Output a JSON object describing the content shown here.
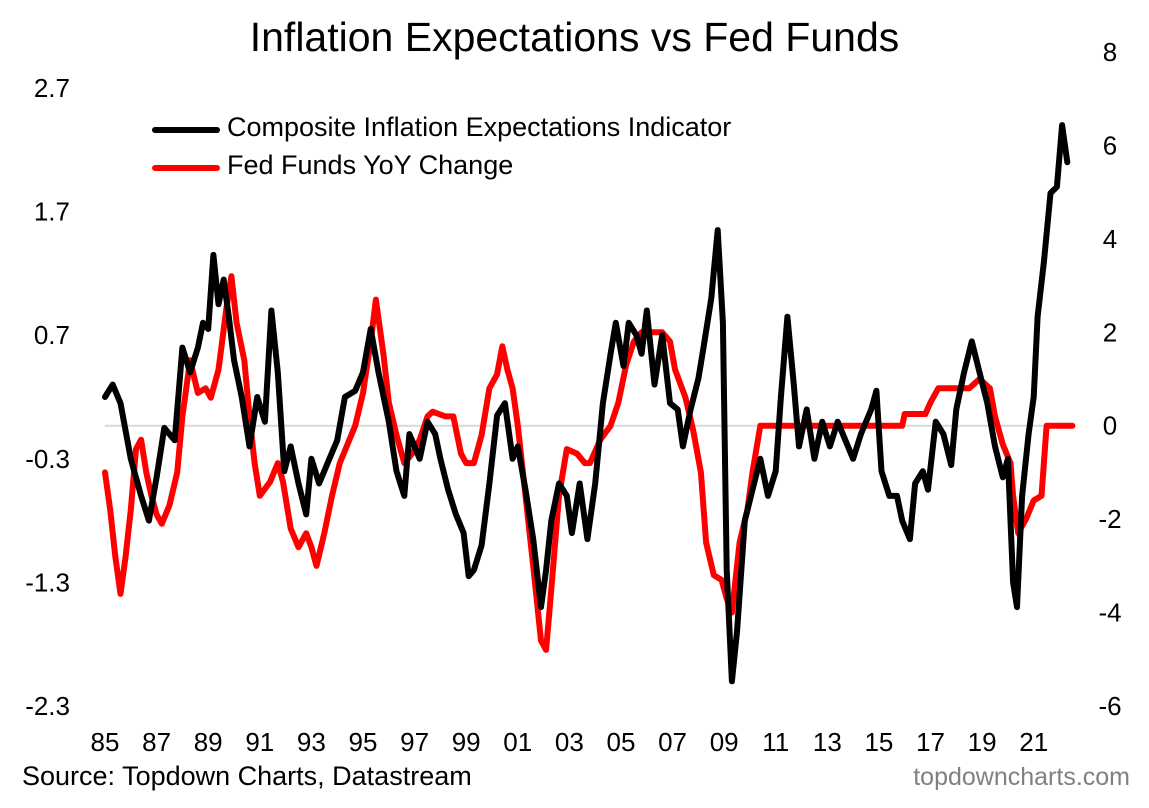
{
  "chart_data": {
    "type": "line",
    "title": "Inflation Expectations vs Fed Funds",
    "source": "Source: Topdown Charts, Datastream",
    "credit": "topdowncharts.com",
    "legend_position": "top-left",
    "grid": false,
    "x_axis": {
      "range": [
        1985,
        2022.6
      ],
      "tick_values": [
        1985,
        1987,
        1989,
        1991,
        1993,
        1995,
        1997,
        1999,
        2001,
        2003,
        2005,
        2007,
        2009,
        2011,
        2013,
        2015,
        2017,
        2019,
        2021
      ],
      "tick_labels": [
        "85",
        "87",
        "89",
        "91",
        "93",
        "95",
        "97",
        "99",
        "01",
        "03",
        "05",
        "07",
        "09",
        "11",
        "13",
        "15",
        "17",
        "19",
        "21"
      ]
    },
    "left_axis": {
      "range": [
        -2.3,
        2.7
      ],
      "tick_values": [
        2.7,
        1.7,
        0.7,
        -0.3,
        -1.3,
        -2.3
      ],
      "tick_labels": [
        "2.7",
        "1.7",
        "0.7",
        "-0.3",
        "-1.3",
        "-2.3"
      ]
    },
    "right_axis": {
      "range": [
        -6,
        8
      ],
      "tick_values": [
        8,
        6,
        4,
        2,
        0,
        -2,
        -4,
        -6
      ],
      "tick_labels": [
        "8",
        "6",
        "4",
        "2",
        "0",
        "-2",
        "-4",
        "-6"
      ]
    },
    "series": [
      {
        "name": "Composite Inflation Expectations Indicator",
        "axis": "left",
        "color": "#000000",
        "points": [
          [
            1985.0,
            0.2
          ],
          [
            1985.3,
            0.3
          ],
          [
            1985.6,
            0.15
          ],
          [
            1986.0,
            -0.3
          ],
          [
            1986.4,
            -0.6
          ],
          [
            1986.7,
            -0.8
          ],
          [
            1987.0,
            -0.45
          ],
          [
            1987.3,
            -0.05
          ],
          [
            1987.7,
            -0.15
          ],
          [
            1988.0,
            0.6
          ],
          [
            1988.3,
            0.4
          ],
          [
            1988.6,
            0.6
          ],
          [
            1988.8,
            0.8
          ],
          [
            1989.0,
            0.75
          ],
          [
            1989.2,
            1.35
          ],
          [
            1989.4,
            0.95
          ],
          [
            1989.6,
            1.15
          ],
          [
            1989.8,
            0.85
          ],
          [
            1990.0,
            0.5
          ],
          [
            1990.3,
            0.2
          ],
          [
            1990.6,
            -0.2
          ],
          [
            1990.9,
            0.2
          ],
          [
            1991.2,
            0.0
          ],
          [
            1991.45,
            0.9
          ],
          [
            1991.7,
            0.4
          ],
          [
            1991.95,
            -0.4
          ],
          [
            1992.2,
            -0.2
          ],
          [
            1992.5,
            -0.5
          ],
          [
            1992.8,
            -0.75
          ],
          [
            1993.0,
            -0.3
          ],
          [
            1993.3,
            -0.5
          ],
          [
            1993.7,
            -0.3
          ],
          [
            1994.0,
            -0.15
          ],
          [
            1994.3,
            0.2
          ],
          [
            1994.7,
            0.25
          ],
          [
            1995.0,
            0.4
          ],
          [
            1995.3,
            0.75
          ],
          [
            1995.6,
            0.4
          ],
          [
            1996.0,
            0.0
          ],
          [
            1996.3,
            -0.4
          ],
          [
            1996.6,
            -0.6
          ],
          [
            1996.8,
            -0.1
          ],
          [
            1997.2,
            -0.3
          ],
          [
            1997.5,
            0.0
          ],
          [
            1997.8,
            -0.1
          ],
          [
            1998.0,
            -0.3
          ],
          [
            1998.3,
            -0.55
          ],
          [
            1998.6,
            -0.75
          ],
          [
            1998.9,
            -0.9
          ],
          [
            1999.1,
            -1.25
          ],
          [
            1999.3,
            -1.2
          ],
          [
            1999.6,
            -1.0
          ],
          [
            1999.9,
            -0.5
          ],
          [
            2000.2,
            0.05
          ],
          [
            2000.5,
            0.15
          ],
          [
            2000.8,
            -0.3
          ],
          [
            2001.0,
            -0.2
          ],
          [
            2001.3,
            -0.55
          ],
          [
            2001.6,
            -0.95
          ],
          [
            2001.9,
            -1.5
          ],
          [
            2002.1,
            -1.2
          ],
          [
            2002.3,
            -0.8
          ],
          [
            2002.6,
            -0.5
          ],
          [
            2002.9,
            -0.6
          ],
          [
            2003.1,
            -0.9
          ],
          [
            2003.4,
            -0.5
          ],
          [
            2003.7,
            -0.95
          ],
          [
            2004.0,
            -0.5
          ],
          [
            2004.3,
            0.15
          ],
          [
            2004.6,
            0.55
          ],
          [
            2004.8,
            0.8
          ],
          [
            2005.1,
            0.45
          ],
          [
            2005.3,
            0.8
          ],
          [
            2005.6,
            0.7
          ],
          [
            2005.8,
            0.55
          ],
          [
            2006.0,
            0.9
          ],
          [
            2006.3,
            0.3
          ],
          [
            2006.6,
            0.7
          ],
          [
            2006.9,
            0.15
          ],
          [
            2007.2,
            0.1
          ],
          [
            2007.4,
            -0.2
          ],
          [
            2007.7,
            0.1
          ],
          [
            2008.0,
            0.35
          ],
          [
            2008.2,
            0.6
          ],
          [
            2008.5,
            1.0
          ],
          [
            2008.75,
            1.55
          ],
          [
            2008.95,
            0.8
          ],
          [
            2009.1,
            -1.2
          ],
          [
            2009.3,
            -2.1
          ],
          [
            2009.5,
            -1.7
          ],
          [
            2009.8,
            -0.8
          ],
          [
            2010.1,
            -0.55
          ],
          [
            2010.4,
            -0.3
          ],
          [
            2010.7,
            -0.6
          ],
          [
            2011.0,
            -0.4
          ],
          [
            2011.2,
            0.2
          ],
          [
            2011.45,
            0.85
          ],
          [
            2011.7,
            0.3
          ],
          [
            2011.9,
            -0.2
          ],
          [
            2012.2,
            0.1
          ],
          [
            2012.5,
            -0.3
          ],
          [
            2012.8,
            0.0
          ],
          [
            2013.1,
            -0.2
          ],
          [
            2013.4,
            0.0
          ],
          [
            2013.7,
            -0.15
          ],
          [
            2014.0,
            -0.3
          ],
          [
            2014.3,
            -0.1
          ],
          [
            2014.7,
            0.1
          ],
          [
            2014.9,
            0.25
          ],
          [
            2015.1,
            -0.4
          ],
          [
            2015.4,
            -0.6
          ],
          [
            2015.7,
            -0.6
          ],
          [
            2015.9,
            -0.8
          ],
          [
            2016.2,
            -0.95
          ],
          [
            2016.4,
            -0.5
          ],
          [
            2016.7,
            -0.4
          ],
          [
            2016.9,
            -0.55
          ],
          [
            2017.2,
            0.0
          ],
          [
            2017.5,
            -0.1
          ],
          [
            2017.8,
            -0.35
          ],
          [
            2018.0,
            0.1
          ],
          [
            2018.3,
            0.4
          ],
          [
            2018.6,
            0.65
          ],
          [
            2018.9,
            0.4
          ],
          [
            2019.2,
            0.15
          ],
          [
            2019.5,
            -0.2
          ],
          [
            2019.8,
            -0.45
          ],
          [
            2020.0,
            -0.3
          ],
          [
            2020.2,
            -1.3
          ],
          [
            2020.35,
            -1.5
          ],
          [
            2020.55,
            -0.6
          ],
          [
            2020.8,
            -0.1
          ],
          [
            2021.0,
            0.2
          ],
          [
            2021.15,
            0.85
          ],
          [
            2021.4,
            1.3
          ],
          [
            2021.65,
            1.85
          ],
          [
            2021.9,
            1.9
          ],
          [
            2022.1,
            2.4
          ],
          [
            2022.3,
            2.1
          ]
        ]
      },
      {
        "name": "Fed Funds YoY Change",
        "axis": "right",
        "color": "#ff0000",
        "points": [
          [
            1985.0,
            -1.0
          ],
          [
            1985.2,
            -1.8
          ],
          [
            1985.4,
            -2.8
          ],
          [
            1985.6,
            -3.6
          ],
          [
            1985.8,
            -2.8
          ],
          [
            1986.0,
            -1.8
          ],
          [
            1986.2,
            -0.5
          ],
          [
            1986.4,
            -0.3
          ],
          [
            1986.6,
            -1.0
          ],
          [
            1986.8,
            -1.5
          ],
          [
            1987.0,
            -1.9
          ],
          [
            1987.2,
            -2.1
          ],
          [
            1987.5,
            -1.7
          ],
          [
            1987.8,
            -1.0
          ],
          [
            1988.0,
            0.2
          ],
          [
            1988.3,
            1.4
          ],
          [
            1988.6,
            0.7
          ],
          [
            1988.9,
            0.8
          ],
          [
            1989.1,
            0.6
          ],
          [
            1989.4,
            1.2
          ],
          [
            1989.7,
            2.5
          ],
          [
            1989.9,
            3.2
          ],
          [
            1990.1,
            2.2
          ],
          [
            1990.4,
            1.4
          ],
          [
            1990.6,
            0.2
          ],
          [
            1990.8,
            -0.8
          ],
          [
            1991.0,
            -1.5
          ],
          [
            1991.4,
            -1.2
          ],
          [
            1991.7,
            -0.8
          ],
          [
            1991.9,
            -1.2
          ],
          [
            1992.2,
            -2.2
          ],
          [
            1992.5,
            -2.6
          ],
          [
            1992.8,
            -2.3
          ],
          [
            1993.0,
            -2.6
          ],
          [
            1993.2,
            -3.0
          ],
          [
            1993.5,
            -2.3
          ],
          [
            1993.8,
            -1.5
          ],
          [
            1994.1,
            -0.8
          ],
          [
            1994.4,
            -0.4
          ],
          [
            1994.7,
            0.0
          ],
          [
            1995.0,
            0.7
          ],
          [
            1995.3,
            1.8
          ],
          [
            1995.5,
            2.7
          ],
          [
            1995.8,
            1.5
          ],
          [
            1996.0,
            0.5
          ],
          [
            1996.3,
            -0.2
          ],
          [
            1996.6,
            -0.8
          ],
          [
            1996.9,
            -0.6
          ],
          [
            1997.2,
            -0.3
          ],
          [
            1997.5,
            0.2
          ],
          [
            1997.7,
            0.3
          ],
          [
            1998.2,
            0.2
          ],
          [
            1998.5,
            0.2
          ],
          [
            1998.8,
            -0.6
          ],
          [
            1999.0,
            -0.8
          ],
          [
            1999.3,
            -0.8
          ],
          [
            1999.6,
            -0.2
          ],
          [
            1999.9,
            0.8
          ],
          [
            2000.2,
            1.1
          ],
          [
            2000.4,
            1.7
          ],
          [
            2000.6,
            1.2
          ],
          [
            2000.8,
            0.8
          ],
          [
            2001.0,
            0.0
          ],
          [
            2001.3,
            -1.5
          ],
          [
            2001.6,
            -3.0
          ],
          [
            2001.9,
            -4.6
          ],
          [
            2002.1,
            -4.8
          ],
          [
            2002.3,
            -3.5
          ],
          [
            2002.6,
            -1.5
          ],
          [
            2002.9,
            -0.5
          ],
          [
            2003.3,
            -0.6
          ],
          [
            2003.6,
            -0.8
          ],
          [
            2003.8,
            -0.8
          ],
          [
            2004.2,
            -0.3
          ],
          [
            2004.6,
            0.0
          ],
          [
            2004.9,
            0.5
          ],
          [
            2005.2,
            1.3
          ],
          [
            2005.5,
            1.8
          ],
          [
            2005.8,
            2.0
          ],
          [
            2006.2,
            2.0
          ],
          [
            2006.6,
            2.0
          ],
          [
            2006.9,
            1.8
          ],
          [
            2007.1,
            1.2
          ],
          [
            2007.5,
            0.6
          ],
          [
            2007.8,
            -0.1
          ],
          [
            2008.1,
            -1.0
          ],
          [
            2008.3,
            -2.5
          ],
          [
            2008.6,
            -3.2
          ],
          [
            2008.9,
            -3.3
          ],
          [
            2009.1,
            -3.7
          ],
          [
            2009.3,
            -4.0
          ],
          [
            2009.6,
            -2.5
          ],
          [
            2009.9,
            -1.8
          ],
          [
            2010.1,
            -1.0
          ],
          [
            2010.4,
            0.0
          ],
          [
            2011.0,
            0.0
          ],
          [
            2012.0,
            0.0
          ],
          [
            2013.0,
            0.0
          ],
          [
            2014.0,
            0.0
          ],
          [
            2015.0,
            0.0
          ],
          [
            2015.9,
            0.0
          ],
          [
            2016.0,
            0.25
          ],
          [
            2016.8,
            0.25
          ],
          [
            2017.0,
            0.5
          ],
          [
            2017.3,
            0.8
          ],
          [
            2018.0,
            0.8
          ],
          [
            2018.5,
            0.8
          ],
          [
            2018.9,
            1.0
          ],
          [
            2019.3,
            0.8
          ],
          [
            2019.5,
            0.2
          ],
          [
            2019.8,
            -0.4
          ],
          [
            2020.1,
            -0.8
          ],
          [
            2020.2,
            -1.5
          ],
          [
            2020.4,
            -2.3
          ],
          [
            2020.7,
            -2.0
          ],
          [
            2021.0,
            -1.6
          ],
          [
            2021.3,
            -1.5
          ],
          [
            2021.5,
            0.0
          ],
          [
            2021.8,
            0.0
          ],
          [
            2022.1,
            0.0
          ],
          [
            2022.5,
            0.0
          ]
        ]
      }
    ]
  }
}
